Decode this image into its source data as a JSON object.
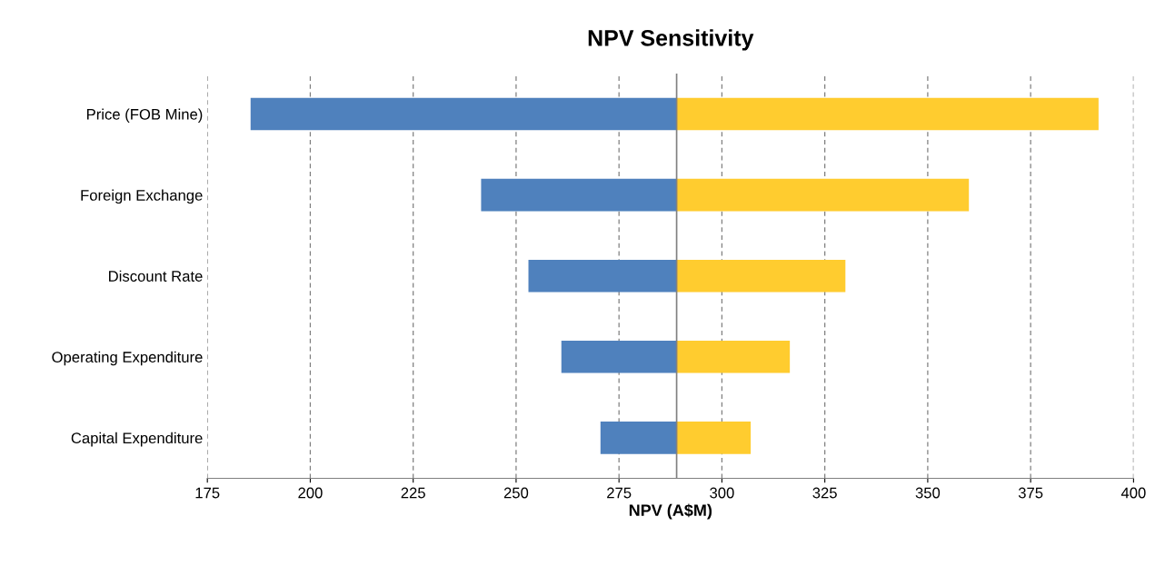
{
  "chart_data": {
    "type": "bar",
    "orientation": "horizontal",
    "title": "NPV Sensitivity",
    "xlabel": "NPV (A$M)",
    "categories": [
      "Price (FOB Mine)",
      "Foreign Exchange",
      "Discount Rate",
      "Operating Expenditure",
      "Capital Expenditure"
    ],
    "series": [
      {
        "color": "#4f81bd",
        "base": [
          185.5,
          241.5,
          253,
          261,
          270.5
        ],
        "values": [
          103.5,
          47.5,
          36,
          28,
          18.5
        ]
      },
      {
        "color": "#ffcc2f",
        "base": [
          289,
          289,
          289,
          289,
          289
        ],
        "values": [
          102.5,
          71,
          41,
          27.5,
          18
        ]
      }
    ],
    "xlim": [
      175,
      400
    ],
    "xticks": [
      175,
      200,
      225,
      250,
      275,
      300,
      325,
      350,
      375,
      400
    ],
    "grid": "x",
    "ref_lines": [
      {
        "axis": "x",
        "value": 289,
        "color": "#808080"
      }
    ]
  }
}
